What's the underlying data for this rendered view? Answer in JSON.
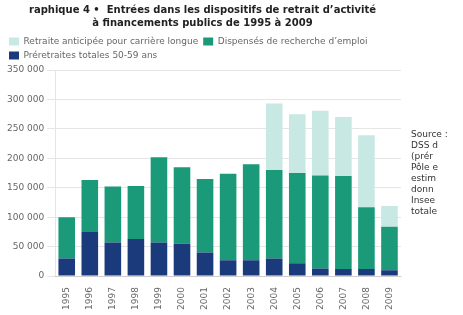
{
  "chart_data": {
    "type": "bar",
    "title": "raphique 4 •  Entrées dans les dispositifs de retrait d’activité",
    "subtitle": "à financements publics de 1995 à 2009",
    "annotations": [
      "Source :\nDSS d\n(prér\nPôle e\nestim\ndonn\nInsee\ntotale"
    ],
    "categories": [
      "1995",
      "1996",
      "1997",
      "1998",
      "1999",
      "2000",
      "2001",
      "2002",
      "2003",
      "2004",
      "2005",
      "2006",
      "2007",
      "2008",
      "2009"
    ],
    "series": [
      {
        "name": "Préretraites totales 50-59 ans",
        "color": "#1a3a7c",
        "values": [
          30000,
          75000,
          57000,
          63000,
          57000,
          55000,
          40000,
          27000,
          27000,
          30000,
          22000,
          13000,
          12000,
          12000,
          10000
        ]
      },
      {
        "name": "Dispensés de recherche d’emploi",
        "color": "#1a9a78",
        "values": [
          70000,
          88000,
          95000,
          90000,
          145000,
          130000,
          125000,
          147000,
          163000,
          150000,
          153000,
          158000,
          158000,
          105000,
          74000
        ]
      },
      {
        "name": "Retraite anticipée pour carrière longue",
        "color": "#c8e8e4",
        "values": [
          0,
          0,
          0,
          0,
          0,
          0,
          0,
          0,
          0,
          113000,
          100000,
          110000,
          100000,
          122000,
          35000
        ]
      }
    ],
    "stacked": true,
    "ylim": [
      0,
      350000
    ],
    "yticks": [
      0,
      {
        "value": 50000,
        "label": "50 000"
      },
      {
        "value": 100000,
        "label": "100 000"
      },
      {
        "value": 150000,
        "label": "150 000"
      },
      {
        "value": 200000,
        "label": "200 000"
      },
      {
        "value": 250000,
        "label": "250 000"
      },
      {
        "value": 300000,
        "label": "300 000"
      },
      {
        "value": 350000,
        "label": "350 000"
      }
    ],
    "grid": true,
    "legend": "upper left"
  }
}
